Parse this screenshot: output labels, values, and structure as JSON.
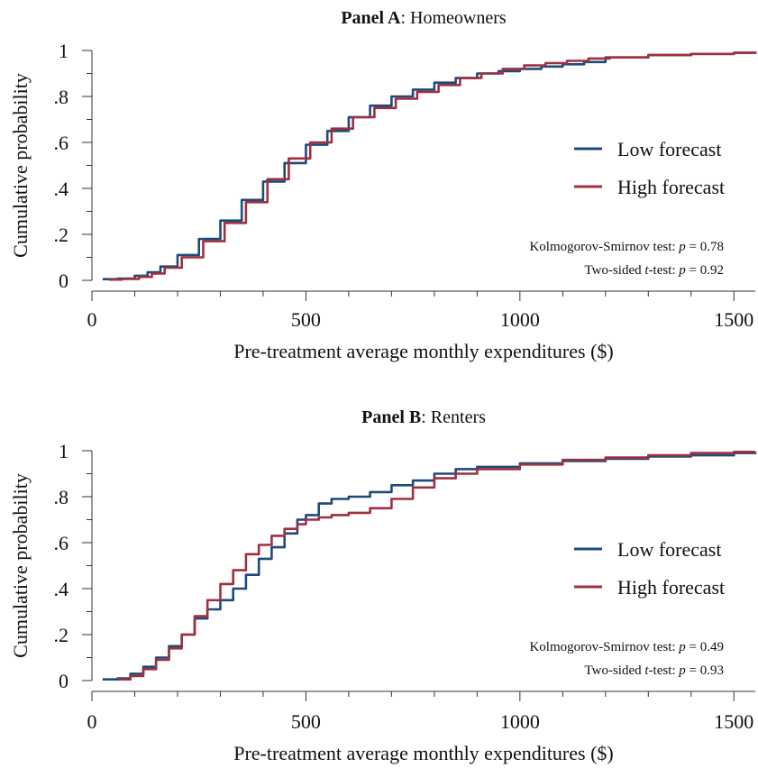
{
  "colors": {
    "low": "#1f4a7a",
    "high": "#9e3040",
    "axis": "#333333"
  },
  "chart_data": [
    {
      "type": "line",
      "title_bold": "Panel A",
      "title_rest": ": Homeowners",
      "xlabel": "Pre-treatment average monthly expenditures ($)",
      "ylabel": "Cumulative probability",
      "xlim": [
        0,
        1550
      ],
      "ylim": [
        0,
        1
      ],
      "xticks": [
        0,
        500,
        1000,
        1500
      ],
      "xtick_labels": [
        "0",
        "500",
        "1000",
        "1500"
      ],
      "yticks": [
        0,
        0.2,
        0.4,
        0.6,
        0.8,
        1
      ],
      "ytick_labels": [
        "0",
        ".2",
        ".4",
        ".6",
        ".8",
        "1"
      ],
      "legend": [
        "Low forecast",
        "High forecast"
      ],
      "legend_placement": "right",
      "stat1_prefix": "Kolmogorov-Smirnov  test:  ",
      "stat1_p": "p",
      "stat1_value": " = 0.78",
      "stat2_prefix": "Two-sided ",
      "stat2_t": "t",
      "stat2_mid": "-test:  ",
      "stat2_p": "p",
      "stat2_value": " = 0.92",
      "series": [
        {
          "key": "low",
          "x": [
            25,
            60,
            100,
            130,
            160,
            200,
            250,
            300,
            350,
            400,
            450,
            500,
            550,
            600,
            650,
            700,
            750,
            800,
            850,
            900,
            950,
            1000,
            1050,
            1100,
            1150,
            1200,
            1300,
            1400,
            1500,
            1550
          ],
          "y": [
            0.005,
            0.008,
            0.02,
            0.035,
            0.06,
            0.11,
            0.18,
            0.26,
            0.35,
            0.43,
            0.51,
            0.59,
            0.65,
            0.71,
            0.76,
            0.8,
            0.83,
            0.86,
            0.88,
            0.9,
            0.91,
            0.92,
            0.93,
            0.94,
            0.95,
            0.97,
            0.98,
            0.985,
            0.99,
            0.995
          ]
        },
        {
          "key": "high",
          "x": [
            40,
            70,
            110,
            140,
            170,
            210,
            260,
            310,
            360,
            410,
            460,
            510,
            560,
            610,
            660,
            710,
            760,
            810,
            860,
            910,
            960,
            1010,
            1060,
            1110,
            1160,
            1210,
            1300,
            1400,
            1500,
            1550
          ],
          "y": [
            0.003,
            0.006,
            0.015,
            0.03,
            0.055,
            0.1,
            0.17,
            0.25,
            0.34,
            0.44,
            0.53,
            0.6,
            0.66,
            0.71,
            0.75,
            0.79,
            0.82,
            0.85,
            0.88,
            0.9,
            0.92,
            0.935,
            0.945,
            0.955,
            0.965,
            0.97,
            0.98,
            0.985,
            0.99,
            0.995
          ]
        }
      ]
    },
    {
      "type": "line",
      "title_bold": "Panel B",
      "title_rest": ": Renters",
      "xlabel": "Pre-treatment average monthly expenditures ($)",
      "ylabel": "Cumulative probability",
      "xlim": [
        0,
        1550
      ],
      "ylim": [
        0,
        1
      ],
      "xticks": [
        0,
        500,
        1000,
        1500
      ],
      "xtick_labels": [
        "0",
        "500",
        "1000",
        "1500"
      ],
      "yticks": [
        0,
        0.2,
        0.4,
        0.6,
        0.8,
        1
      ],
      "ytick_labels": [
        "0",
        ".2",
        ".4",
        ".6",
        ".8",
        "1"
      ],
      "legend": [
        "Low forecast",
        "High forecast"
      ],
      "legend_placement": "right",
      "stat1_prefix": "Kolmogorov-Smirnov  test:  ",
      "stat1_p": "p",
      "stat1_value": " = 0.49",
      "stat2_prefix": "Two-sided ",
      "stat2_t": "t",
      "stat2_mid": "-test:  ",
      "stat2_p": "p",
      "stat2_value": " = 0.93",
      "series": [
        {
          "key": "low",
          "x": [
            25,
            60,
            90,
            120,
            150,
            180,
            210,
            240,
            270,
            300,
            330,
            360,
            390,
            420,
            450,
            480,
            500,
            530,
            560,
            600,
            650,
            700,
            750,
            800,
            850,
            900,
            1000,
            1100,
            1200,
            1300,
            1400,
            1500,
            1550
          ],
          "y": [
            0.005,
            0.01,
            0.03,
            0.06,
            0.1,
            0.15,
            0.2,
            0.27,
            0.31,
            0.35,
            0.4,
            0.46,
            0.53,
            0.58,
            0.64,
            0.7,
            0.72,
            0.77,
            0.79,
            0.8,
            0.82,
            0.85,
            0.87,
            0.9,
            0.92,
            0.93,
            0.945,
            0.955,
            0.965,
            0.975,
            0.98,
            0.99,
            0.995
          ]
        },
        {
          "key": "high",
          "x": [
            60,
            90,
            120,
            150,
            180,
            210,
            240,
            270,
            300,
            330,
            360,
            390,
            420,
            450,
            480,
            500,
            530,
            560,
            600,
            650,
            700,
            750,
            800,
            850,
            900,
            1000,
            1100,
            1200,
            1300,
            1400,
            1500,
            1550
          ],
          "y": [
            0.005,
            0.02,
            0.05,
            0.09,
            0.14,
            0.2,
            0.28,
            0.35,
            0.42,
            0.48,
            0.55,
            0.59,
            0.63,
            0.66,
            0.68,
            0.7,
            0.71,
            0.72,
            0.73,
            0.75,
            0.79,
            0.84,
            0.88,
            0.9,
            0.92,
            0.94,
            0.96,
            0.97,
            0.98,
            0.99,
            0.995,
            0.995
          ]
        }
      ]
    }
  ]
}
